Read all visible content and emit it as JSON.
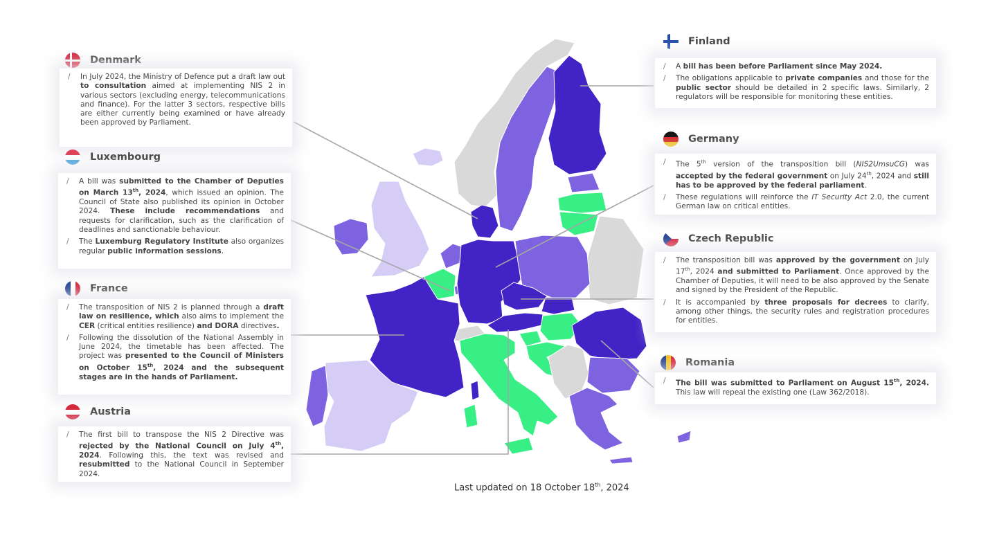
{
  "colors": {
    "dark_purple": "#4123c6",
    "medium_purple": "#7d63e0",
    "light_purple": "#d5cdf5",
    "green": "#38ef86",
    "gray": "#d9d9d9",
    "leader_line": "#a6a6a6"
  },
  "countries": {
    "denmark": {
      "name": "Denmark",
      "flag": "denmark-flag-icon",
      "paragraphs": [
        {
          "runs": [
            {
              "t": "In July 2024, the Ministry of Defence put a draft law out "
            },
            {
              "t": "to consultation",
              "b": true
            },
            {
              "t": " aimed at implementing NIS 2 in various sectors (excluding energy, telecommunications and finance). For the latter 3 sectors, respective bills are either currently being examined or have already been approved by Parliament."
            }
          ]
        }
      ]
    },
    "luxembourg": {
      "name": "Luxembourg",
      "flag": "luxembourg-flag-icon",
      "paragraphs": [
        {
          "runs": [
            {
              "t": "A bill was "
            },
            {
              "t": "submitted to the Chamber of Deputies on March 13",
              "b": true
            },
            {
              "t": "th",
              "b": true,
              "sup": true
            },
            {
              "t": ", 2024",
              "b": true
            },
            {
              "t": ", which issued an opinion. The Council of State also published its opinion in October 2024. "
            },
            {
              "t": "These include recommendations",
              "b": true
            },
            {
              "t": " and requests for clarification, such as the clarification of deadlines and sanctionable behaviour."
            }
          ]
        },
        {
          "runs": [
            {
              "t": "The "
            },
            {
              "t": "Luxemburg Regulatory Institute",
              "b": true
            },
            {
              "t": " also organizes regular "
            },
            {
              "t": "public information sessions",
              "b": true
            },
            {
              "t": "."
            }
          ]
        }
      ]
    },
    "france": {
      "name": "France",
      "flag": "france-flag-icon",
      "paragraphs": [
        {
          "runs": [
            {
              "t": "The transposition of NIS 2 is planned through a "
            },
            {
              "t": "draft law on resilience, which",
              "b": true
            },
            {
              "t": " also aims to implement the "
            },
            {
              "t": "CER",
              "b": true
            },
            {
              "t": " (critical entities resilience) "
            },
            {
              "t": "and DORA",
              "b": true
            },
            {
              "t": " directives"
            },
            {
              "t": ".",
              "b": true
            }
          ]
        },
        {
          "runs": [
            {
              "t": "Following the dissolution of the National Assembly in June 2024, the timetable has been affected. The project was "
            },
            {
              "t": "presented to the Council of Ministers on October 15",
              "b": true
            },
            {
              "t": "th",
              "b": true,
              "sup": true
            },
            {
              "t": ", 2024 and the subsequent stages are in the hands of Parliament.",
              "b": true
            }
          ]
        }
      ]
    },
    "austria": {
      "name": "Austria",
      "flag": "austria-flag-icon",
      "paragraphs": [
        {
          "runs": [
            {
              "t": "The first bill to transpose the NIS 2 Directive was "
            },
            {
              "t": "rejected by the National Council on July 4",
              "b": true
            },
            {
              "t": "th",
              "b": true,
              "sup": true
            },
            {
              "t": ", 2024",
              "b": true
            },
            {
              "t": ". Following this, the text was revised and "
            },
            {
              "t": "resubmitted",
              "b": true
            },
            {
              "t": " to the National Council in September 2024."
            }
          ]
        }
      ]
    },
    "finland": {
      "name": "Finland",
      "flag": "finland-flag-icon",
      "paragraphs": [
        {
          "runs": [
            {
              "t": "A "
            },
            {
              "t": "bill has been before Parliament since May 2024.",
              "b": true
            }
          ]
        },
        {
          "runs": [
            {
              "t": "The obligations applicable to "
            },
            {
              "t": "private companies",
              "b": true
            },
            {
              "t": " and those for the "
            },
            {
              "t": "public sector",
              "b": true
            },
            {
              "t": " should be detailed in 2 specific laws. Similarly, 2 regulators will be responsible for monitoring these entities."
            }
          ]
        }
      ]
    },
    "germany": {
      "name": "Germany",
      "flag": "germany-flag-icon",
      "paragraphs": [
        {
          "runs": [
            {
              "t": "The 5"
            },
            {
              "t": "th",
              "sup": true
            },
            {
              "t": " version of the transposition bill ("
            },
            {
              "t": "NIS2UmsuCG",
              "i": true
            },
            {
              "t": ") was "
            },
            {
              "t": "accepted by the federal government",
              "b": true
            },
            {
              "t": " on July 24"
            },
            {
              "t": "th",
              "sup": true
            },
            {
              "t": ", 2024 and "
            },
            {
              "t": "still has to be approved by the federal parliament",
              "b": true
            },
            {
              "t": "."
            }
          ]
        },
        {
          "runs": [
            {
              "t": "These regulations will reinforce the "
            },
            {
              "t": "IT Security Act",
              "i": true
            },
            {
              "t": " 2.0, the current German law on critical entities."
            }
          ]
        }
      ]
    },
    "czech": {
      "name": "Czech Republic",
      "flag": "czech-flag-icon",
      "paragraphs": [
        {
          "runs": [
            {
              "t": "The transposition bill was "
            },
            {
              "t": "approved by the government",
              "b": true
            },
            {
              "t": " on July 17"
            },
            {
              "t": "th",
              "sup": true
            },
            {
              "t": ", 2024 "
            },
            {
              "t": "and submitted to Parliament",
              "b": true
            },
            {
              "t": ". Once approved by the Chamber of Deputies, it will need to be also approved by the Senate and signed by the President of the Republic."
            }
          ]
        },
        {
          "runs": [
            {
              "t": "It is accompanied by "
            },
            {
              "t": "three proposals for decrees",
              "b": true
            },
            {
              "t": " to clarify, among other things, the security rules and registration procedures for entities."
            }
          ]
        }
      ]
    },
    "romania": {
      "name": "Romania",
      "flag": "romania-flag-icon",
      "paragraphs": [
        {
          "runs": [
            {
              "t": "The bill was submitted to Parliament on August 15",
              "b": true
            },
            {
              "t": "th",
              "b": true,
              "sup": true
            },
            {
              "t": ", 2024.",
              "b": true
            },
            {
              "t": " This law will repeal the existing one (Law 362/2018)."
            }
          ]
        }
      ]
    }
  },
  "map": {
    "regions": [
      {
        "name": "iceland",
        "status": "light_purple"
      },
      {
        "name": "ireland",
        "status": "medium_purple"
      },
      {
        "name": "united-kingdom",
        "status": "light_purple"
      },
      {
        "name": "norway",
        "status": "gray"
      },
      {
        "name": "sweden",
        "status": "medium_purple"
      },
      {
        "name": "finland",
        "status": "dark_purple"
      },
      {
        "name": "estonia",
        "status": "medium_purple"
      },
      {
        "name": "latvia",
        "status": "green"
      },
      {
        "name": "lithuania",
        "status": "green"
      },
      {
        "name": "denmark",
        "status": "dark_purple"
      },
      {
        "name": "netherlands",
        "status": "medium_purple"
      },
      {
        "name": "belgium",
        "status": "green"
      },
      {
        "name": "luxembourg",
        "status": "medium_purple"
      },
      {
        "name": "germany",
        "status": "dark_purple"
      },
      {
        "name": "poland",
        "status": "medium_purple"
      },
      {
        "name": "czech-republic",
        "status": "dark_purple"
      },
      {
        "name": "slovakia",
        "status": "dark_purple"
      },
      {
        "name": "austria",
        "status": "dark_purple"
      },
      {
        "name": "hungary",
        "status": "green"
      },
      {
        "name": "slovenia",
        "status": "green"
      },
      {
        "name": "croatia",
        "status": "green"
      },
      {
        "name": "switzerland",
        "status": "gray"
      },
      {
        "name": "france",
        "status": "dark_purple"
      },
      {
        "name": "spain",
        "status": "light_purple"
      },
      {
        "name": "portugal",
        "status": "medium_purple"
      },
      {
        "name": "italy",
        "status": "green"
      },
      {
        "name": "sardinia",
        "status": "green"
      },
      {
        "name": "corsica",
        "status": "dark_purple"
      },
      {
        "name": "sicily",
        "status": "green"
      },
      {
        "name": "romania",
        "status": "dark_purple"
      },
      {
        "name": "bulgaria",
        "status": "medium_purple"
      },
      {
        "name": "greece",
        "status": "medium_purple"
      },
      {
        "name": "cyprus",
        "status": "medium_purple"
      },
      {
        "name": "balkans",
        "status": "gray"
      },
      {
        "name": "belarus-ukraine",
        "status": "gray"
      },
      {
        "name": "crete",
        "status": "medium_purple"
      }
    ]
  },
  "footer": {
    "prefix": "Last updated on 18 October 18",
    "sup": "th",
    "suffix": ", 2024"
  }
}
